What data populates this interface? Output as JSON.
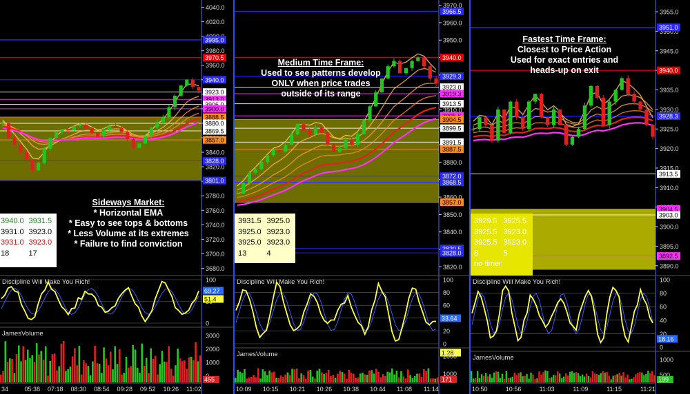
{
  "panels": [
    {
      "id": "left",
      "annotation": {
        "title": "Sideways Market:",
        "lines": [
          "* Horizontal EMA",
          "* Easy to see tops & bottoms",
          "* Less Volume at its extremes",
          "* Failure to find conviction"
        ]
      },
      "table": [
        [
          "3940.0",
          "3931.5"
        ],
        [
          "3931.0",
          "3923.0"
        ],
        [
          "3931.0",
          "3923.0"
        ],
        [
          "18",
          "17"
        ]
      ],
      "price_ticks": [
        "4040.0",
        "4020.0",
        "4000.0",
        "3980.0",
        "3960.0",
        "3940.0",
        "3920.0",
        "3900.0",
        "3880.0",
        "3860.0",
        "3840.0",
        "3820.0",
        "3800.0",
        "3780.0",
        "3760.0",
        "3740.0",
        "3720.0",
        "3700.0",
        "3680.0"
      ],
      "price_tags": [
        "3995.0",
        "3970.5",
        "3940.0",
        "3923.0",
        "3913.0",
        "3906.0",
        "3900.0",
        "3888.5",
        "3880.0",
        "3869.5",
        "3857.0",
        "3828.0",
        "3801.0"
      ],
      "osc_label": "Discipline Will Make You Rich!",
      "osc_ticks": [
        "100",
        "50",
        "0"
      ],
      "osc_tags": [
        "69.27",
        "51.4"
      ],
      "vol_label": "JamesVolume",
      "vol_ticks": [
        "3000",
        "2000",
        "1000",
        "0"
      ],
      "vol_tag": "455",
      "time_ticks": [
        "34",
        "05:38",
        "07:18",
        "08:30",
        "08:54",
        "09:28",
        "09:52",
        "10:26",
        "11:02"
      ]
    },
    {
      "id": "mid",
      "annotation": {
        "title": "Medium Time Frame:",
        "lines": [
          "Used to see patterns develop",
          "ONLY when price trades",
          "outside of its range"
        ]
      },
      "table": [
        [
          "3931.5",
          "3925.0"
        ],
        [
          "3925.0",
          "3923.0"
        ],
        [
          "3925.0",
          "3923.0"
        ],
        [
          "13",
          "4"
        ]
      ],
      "price_ticks": [
        "3970.0",
        "3960.0",
        "3950.0",
        "3940.0",
        "3930.0",
        "3920.0",
        "3910.0",
        "3900.0",
        "3890.0",
        "3880.0",
        "3870.0",
        "3860.0",
        "3850.0",
        "3840.0",
        "3830.0",
        "3820.0"
      ],
      "price_tags": [
        "3966.5",
        "3940.0",
        "3929.3",
        "3923.0",
        "3919.3",
        "3913.5",
        "3906.6",
        "3904.5",
        "3899.5",
        "3891.5",
        "3887.5",
        "3872.0",
        "3868.5",
        "3857.0",
        "3830.5",
        "3828.0"
      ],
      "osc_label": "Discipline Will Make You Rich!",
      "osc_ticks": [
        "100",
        "80",
        "60",
        "40",
        "20",
        "0"
      ],
      "osc_tags": [
        "33.64",
        "1.28"
      ],
      "vol_label": "JamesVolume",
      "vol_ticks": [
        "2000",
        "1000"
      ],
      "vol_tag": "171",
      "time_ticks": [
        "10:09",
        "10:15",
        "10:21",
        "10:26",
        "10:38",
        "10:44",
        "11:08",
        "11:14"
      ]
    },
    {
      "id": "right",
      "annotation": {
        "title": "Fastest Time Frame:",
        "lines": [
          "Closest to Price Action",
          "Used for exact entries and",
          "heads-up on exit"
        ]
      },
      "table": [
        [
          "3929.5",
          "3925.5"
        ],
        [
          "3925.5",
          "3923.0"
        ],
        [
          "3925.5",
          "3923.0"
        ],
        [
          "8",
          "5"
        ]
      ],
      "table_note": "no timer",
      "price_ticks": [
        "3955.0",
        "3950.0",
        "3945.0",
        "3940.0",
        "3935.0",
        "3930.0",
        "3925.0",
        "3920.0",
        "3915.0",
        "3910.0",
        "3905.0",
        "3900.0",
        "3895.0",
        "3890.0"
      ],
      "price_tags": [
        "3951.0",
        "3940.0",
        "3928.3",
        "3913.5",
        "3904.5",
        "3903.0",
        "3892.5"
      ],
      "osc_label": "Discipline Will Make You Rich!",
      "osc_ticks": [
        "100",
        "80",
        "60",
        "40",
        "20",
        "0"
      ],
      "osc_tag": "18.16",
      "vol_label": "JamesVolume",
      "vol_ticks": [
        "1000",
        "500"
      ],
      "vol_tag": "199",
      "time_ticks": [
        "10:50",
        "10:56",
        "11:03",
        "11:09",
        "11:15",
        "11:21"
      ]
    }
  ],
  "colors": {
    "up": "#22c522",
    "down": "#e02020",
    "zone": "#c8c800",
    "axis_line": "#4a6cff",
    "osc": "#ffff44",
    "ema_red": "#e62020",
    "ema_magenta": "#ff30ff",
    "ema_orange": "#ff8a20",
    "level_blue": "#2a2aff",
    "level_red": "#e00000"
  },
  "chart_data": [
    {
      "type": "candlestick",
      "title": "Sideways Market:",
      "ylim": [
        3670,
        4050
      ],
      "yticks": [
        4040,
        4020,
        4000,
        3980,
        3960,
        3940,
        3920,
        3900,
        3880,
        3860,
        3840,
        3820,
        3800,
        3780,
        3760,
        3740,
        3720,
        3700,
        3680
      ],
      "levels": [
        3995.0,
        3970.5,
        3940.0,
        3923.0,
        3913.0,
        3906.0,
        3900.0,
        3888.5,
        3880.0,
        3869.5,
        3857.0,
        3828.0,
        3801.0
      ],
      "zone": [
        3801,
        3888
      ],
      "close_path": [
        3880,
        3860,
        3850,
        3840,
        3830,
        3815,
        3825,
        3845,
        3860,
        3868,
        3872,
        3870,
        3876,
        3878,
        3874,
        3866,
        3862,
        3870,
        3876,
        3874,
        3868,
        3858,
        3846,
        3852,
        3862,
        3874,
        3882,
        3888,
        3902,
        3918,
        3932,
        3940,
        3930,
        3925
      ]
    },
    {
      "type": "candlestick",
      "title": "Medium Time Frame:",
      "ylim": [
        3815,
        3973
      ],
      "yticks": [
        3970,
        3960,
        3950,
        3940,
        3930,
        3920,
        3910,
        3900,
        3890,
        3880,
        3870,
        3860,
        3850,
        3840,
        3830,
        3820
      ],
      "levels": [
        3966.5,
        3940.0,
        3929.3,
        3923.0,
        3919.3,
        3913.5,
        3906.6,
        3904.5,
        3899.5,
        3891.5,
        3887.5,
        3872.0,
        3868.5,
        3857.0,
        3830.5,
        3828.0
      ],
      "zone": [
        3857,
        3904.5
      ],
      "close_path": [
        3862,
        3868,
        3874,
        3876,
        3880,
        3884,
        3887,
        3886,
        3890,
        3896,
        3902,
        3898,
        3896,
        3900,
        3897,
        3890,
        3886,
        3888,
        3893,
        3890,
        3896,
        3904,
        3912,
        3920,
        3928,
        3935,
        3938,
        3931,
        3934,
        3938,
        3940,
        3935,
        3928,
        3925
      ]
    },
    {
      "type": "candlestick",
      "title": "Fastest Time Frame:",
      "ylim": [
        3887.5,
        3958
      ],
      "yticks": [
        3955,
        3950,
        3945,
        3940,
        3935,
        3930,
        3925,
        3920,
        3915,
        3910,
        3905,
        3900,
        3895,
        3890
      ],
      "levels": [
        3951.0,
        3940.0,
        3928.3,
        3913.5,
        3904.5,
        3903.0,
        3892.5
      ],
      "zone": [
        3889,
        3904.5
      ],
      "close_path": [
        3925,
        3928,
        3926,
        3922,
        3930,
        3924,
        3932,
        3928,
        3925,
        3932,
        3934,
        3928,
        3926,
        3930,
        3926,
        3921,
        3923,
        3925,
        3931,
        3936,
        3933,
        3926,
        3932,
        3935,
        3938,
        3934,
        3932,
        3930,
        3926,
        3923
      ]
    }
  ]
}
